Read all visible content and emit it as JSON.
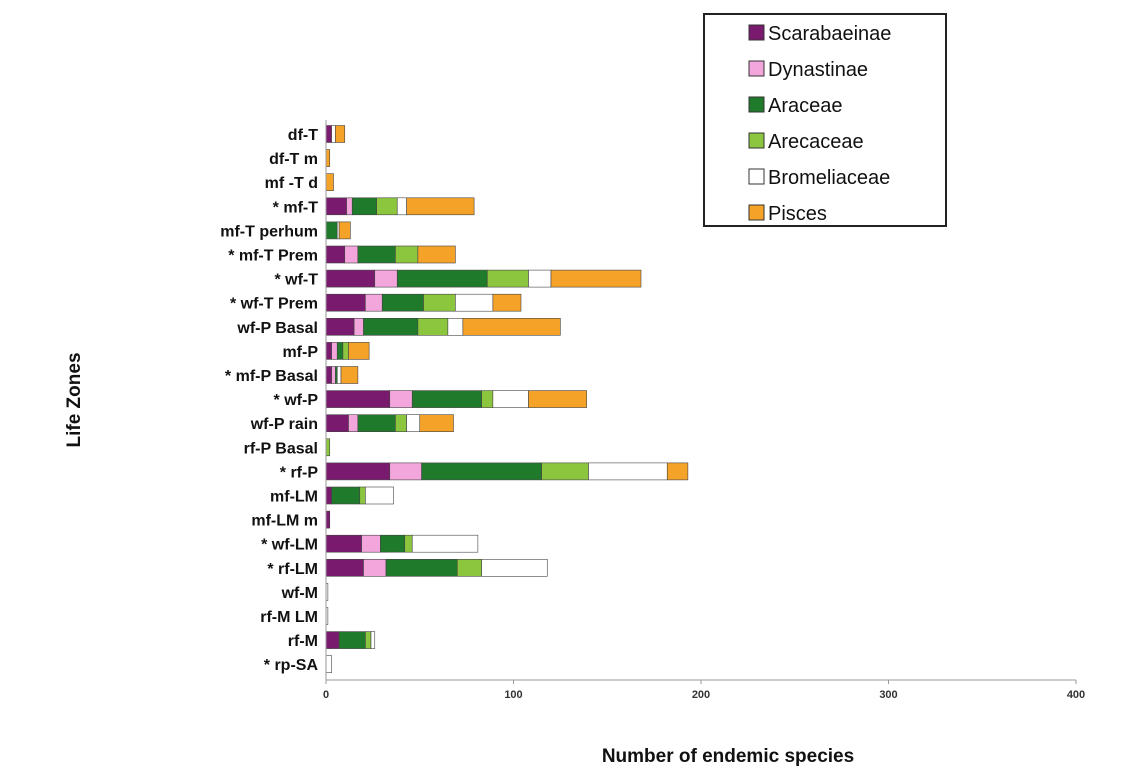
{
  "chart_data": {
    "type": "bar",
    "orientation": "horizontal",
    "stacked": true,
    "xlabel": "Number of endemic species",
    "ylabel": "Life Zones",
    "xlim": [
      0,
      400
    ],
    "xticks": [
      0,
      100,
      200,
      300,
      400
    ],
    "legend_position": "top-right",
    "categories": [
      "df-T",
      "df-T m",
      "mf -T d",
      "* mf-T",
      "mf-T perhum",
      "* mf-T Prem",
      "* wf-T",
      "* wf-T Prem",
      "wf-P Basal",
      "mf-P",
      "* mf-P Basal",
      "* wf-P",
      "wf-P rain",
      "rf-P Basal",
      "* rf-P",
      "mf-LM",
      "mf-LM m",
      "* wf-LM",
      "* rf-LM",
      "wf-M",
      "rf-M LM",
      "rf-M",
      "* rp-SA"
    ],
    "series": [
      {
        "name": "Scarabaeinae",
        "color": "#7a1a6e",
        "values": [
          3,
          0,
          0,
          11,
          0,
          10,
          26,
          21,
          15,
          3,
          3,
          34,
          12,
          0,
          34,
          3,
          2,
          19,
          20,
          0,
          0,
          7,
          0
        ]
      },
      {
        "name": "Dynastinae",
        "color": "#f2a6dc",
        "values": [
          0,
          0,
          0,
          3,
          0,
          7,
          12,
          9,
          5,
          3,
          2,
          12,
          5,
          0,
          17,
          0,
          0,
          10,
          12,
          0,
          0,
          0,
          0
        ]
      },
      {
        "name": "Araceae",
        "color": "#1f7a2b",
        "values": [
          0,
          0,
          0,
          13,
          6,
          20,
          48,
          22,
          29,
          3,
          1,
          37,
          20,
          0,
          64,
          15,
          0,
          13,
          38,
          0,
          0,
          14,
          0
        ]
      },
      {
        "name": "Arecaceae",
        "color": "#8cc63f",
        "values": [
          0,
          0,
          0,
          11,
          0,
          12,
          22,
          17,
          16,
          3,
          0,
          6,
          6,
          2,
          25,
          3,
          0,
          4,
          13,
          0,
          0,
          3,
          0
        ]
      },
      {
        "name": "Bromeliaceae",
        "color": "#ffffff",
        "values": [
          2,
          0,
          0,
          5,
          1,
          0,
          12,
          20,
          8,
          0,
          2,
          19,
          7,
          0,
          42,
          15,
          0,
          35,
          35,
          1,
          1,
          2,
          3
        ]
      },
      {
        "name": "Pisces",
        "color": "#f5a328",
        "values": [
          5,
          2,
          4,
          36,
          6,
          20,
          48,
          15,
          52,
          11,
          9,
          31,
          18,
          0,
          11,
          0,
          0,
          0,
          0,
          0,
          0,
          0,
          0
        ]
      }
    ]
  }
}
